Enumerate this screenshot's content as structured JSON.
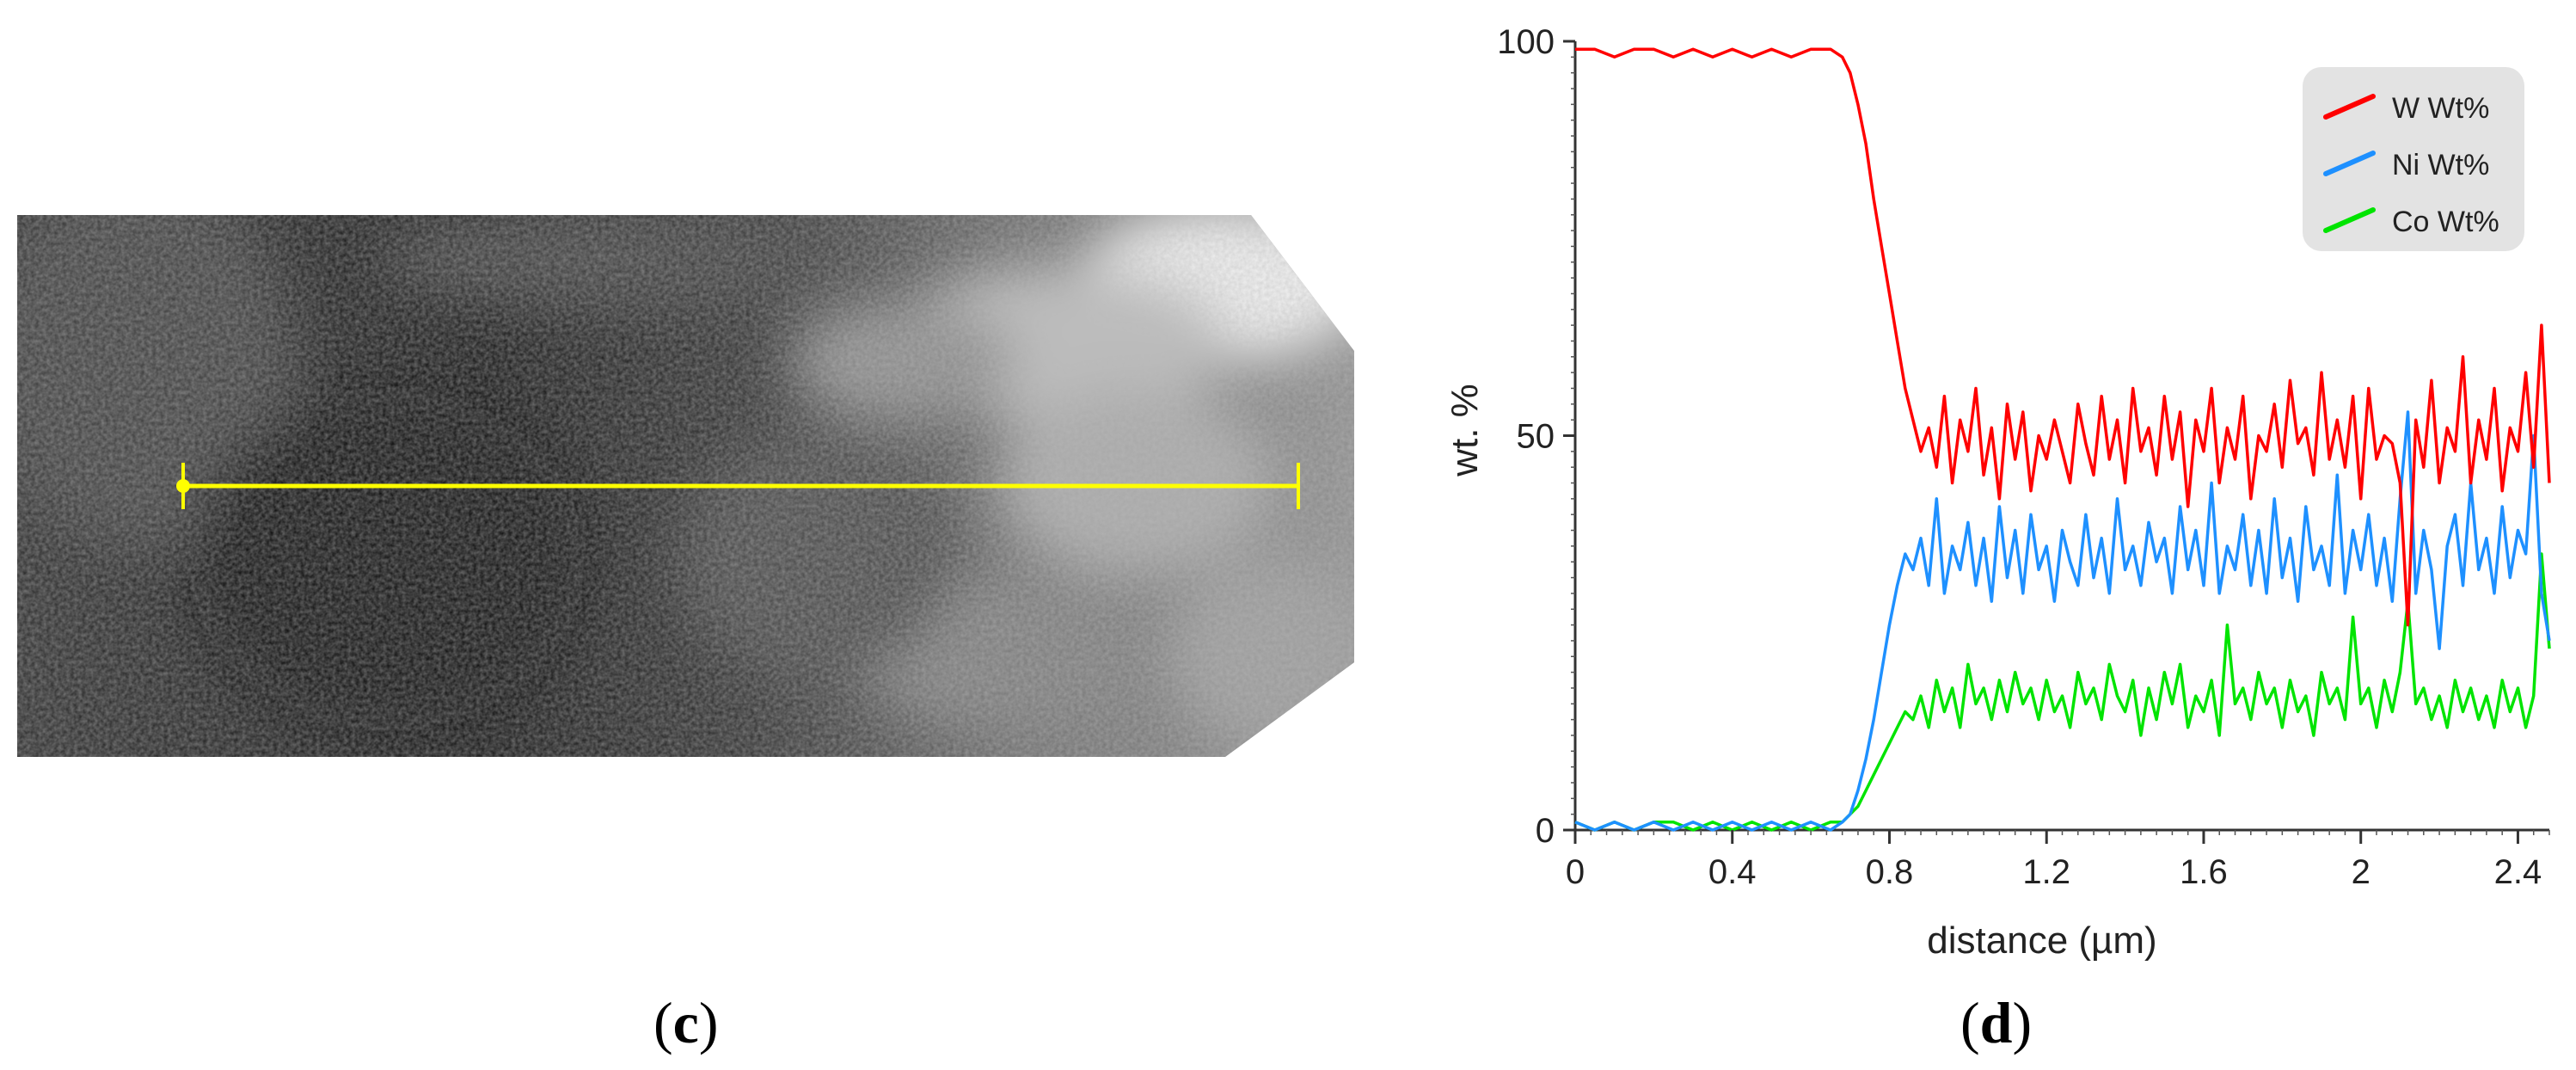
{
  "panels": {
    "left_label": "c",
    "right_label": "d"
  },
  "micrograph": {
    "line_color": "#ffff00",
    "image_description": "grayscale TEM micrograph with a horizontal yellow line-scan marker"
  },
  "chart_data": {
    "type": "line",
    "xlabel": "distance (µm)",
    "ylabel": "wt. %",
    "xlim": [
      0,
      2.48
    ],
    "ylim": [
      0,
      100
    ],
    "x_ticks": [
      0,
      0.4,
      0.8,
      1.2,
      1.6,
      2,
      2.4
    ],
    "x_tick_labels": [
      "0",
      "0.4",
      "0.8",
      "1.2",
      "1.6",
      "2",
      "2.4"
    ],
    "y_ticks": [
      0,
      50,
      100
    ],
    "y_tick_labels": [
      "0",
      "50",
      "100"
    ],
    "grid": false,
    "legend_position": "top-right",
    "x": [
      0.0,
      0.05,
      0.1,
      0.15,
      0.2,
      0.25,
      0.3,
      0.35,
      0.4,
      0.45,
      0.5,
      0.55,
      0.6,
      0.65,
      0.68,
      0.7,
      0.72,
      0.74,
      0.76,
      0.78,
      0.8,
      0.82,
      0.84,
      0.86,
      0.88,
      0.9,
      0.92,
      0.94,
      0.96,
      0.98,
      1.0,
      1.02,
      1.04,
      1.06,
      1.08,
      1.1,
      1.12,
      1.14,
      1.16,
      1.18,
      1.2,
      1.22,
      1.24,
      1.26,
      1.28,
      1.3,
      1.32,
      1.34,
      1.36,
      1.38,
      1.4,
      1.42,
      1.44,
      1.46,
      1.48,
      1.5,
      1.52,
      1.54,
      1.56,
      1.58,
      1.6,
      1.62,
      1.64,
      1.66,
      1.68,
      1.7,
      1.72,
      1.74,
      1.76,
      1.78,
      1.8,
      1.82,
      1.84,
      1.86,
      1.88,
      1.9,
      1.92,
      1.94,
      1.96,
      1.98,
      2.0,
      2.02,
      2.04,
      2.06,
      2.08,
      2.1,
      2.12,
      2.14,
      2.16,
      2.18,
      2.2,
      2.22,
      2.24,
      2.26,
      2.28,
      2.3,
      2.32,
      2.34,
      2.36,
      2.38,
      2.4,
      2.42,
      2.44,
      2.46,
      2.48
    ],
    "series": [
      {
        "name": "W Wt%",
        "color": "#ff0000",
        "values": [
          99,
          99,
          98,
          99,
          99,
          98,
          99,
          98,
          99,
          98,
          99,
          98,
          99,
          99,
          98,
          96,
          92,
          87,
          80,
          74,
          68,
          62,
          56,
          52,
          48,
          51,
          46,
          55,
          44,
          52,
          48,
          56,
          45,
          51,
          42,
          54,
          47,
          53,
          43,
          50,
          47,
          52,
          48,
          44,
          54,
          49,
          45,
          55,
          47,
          52,
          44,
          56,
          48,
          51,
          45,
          55,
          47,
          53,
          41,
          52,
          48,
          56,
          44,
          51,
          47,
          55,
          42,
          50,
          48,
          54,
          46,
          57,
          49,
          51,
          45,
          58,
          47,
          52,
          46,
          55,
          42,
          56,
          47,
          50,
          49,
          44,
          26,
          52,
          46,
          57,
          44,
          51,
          48,
          60,
          44,
          52,
          47,
          56,
          43,
          51,
          48,
          58,
          46,
          64,
          44
        ]
      },
      {
        "name": "Ni Wt%",
        "color": "#1e90ff",
        "values": [
          1,
          0,
          1,
          0,
          1,
          0,
          1,
          0,
          1,
          0,
          1,
          0,
          1,
          0,
          1,
          2,
          5,
          9,
          14,
          20,
          26,
          31,
          35,
          33,
          37,
          31,
          42,
          30,
          36,
          33,
          39,
          31,
          37,
          29,
          41,
          32,
          38,
          30,
          40,
          33,
          36,
          29,
          38,
          34,
          31,
          40,
          32,
          37,
          30,
          42,
          33,
          36,
          31,
          39,
          34,
          37,
          30,
          41,
          33,
          38,
          31,
          44,
          30,
          36,
          33,
          40,
          31,
          38,
          30,
          42,
          32,
          37,
          29,
          41,
          33,
          36,
          31,
          45,
          30,
          38,
          33,
          40,
          31,
          37,
          29,
          42,
          53,
          30,
          38,
          33,
          23,
          36,
          40,
          31,
          44,
          33,
          37,
          30,
          41,
          32,
          38,
          35,
          50,
          30,
          24
        ]
      },
      {
        "name": "Co Wt%",
        "color": "#00e400",
        "values": [
          1,
          0,
          1,
          0,
          1,
          1,
          0,
          1,
          0,
          1,
          0,
          1,
          0,
          1,
          1,
          2,
          3,
          5,
          7,
          9,
          11,
          13,
          15,
          14,
          17,
          13,
          19,
          15,
          18,
          13,
          21,
          16,
          18,
          14,
          19,
          15,
          20,
          16,
          18,
          14,
          19,
          15,
          17,
          13,
          20,
          16,
          18,
          14,
          21,
          17,
          15,
          19,
          12,
          18,
          14,
          20,
          16,
          21,
          13,
          17,
          15,
          19,
          12,
          26,
          16,
          18,
          14,
          20,
          16,
          18,
          13,
          19,
          15,
          17,
          12,
          20,
          16,
          18,
          14,
          27,
          16,
          18,
          13,
          19,
          15,
          20,
          29,
          16,
          18,
          14,
          17,
          13,
          19,
          15,
          18,
          14,
          17,
          13,
          19,
          15,
          18,
          13,
          17,
          35,
          23
        ]
      }
    ]
  }
}
